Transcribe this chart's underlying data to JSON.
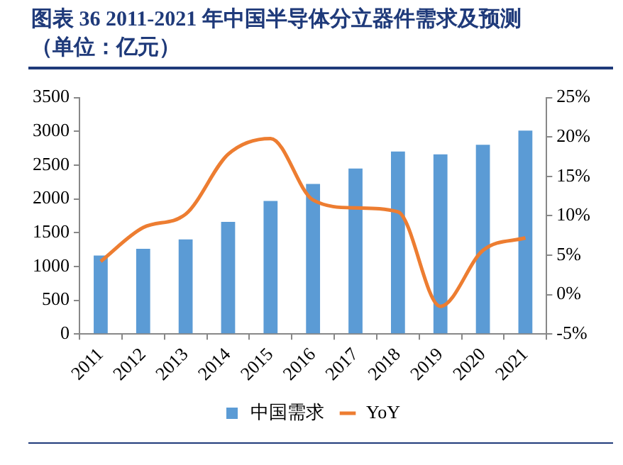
{
  "chart_data": {
    "type": "bar",
    "title": "图表 36   2011-2021 年中国半导体分立器件需求及预测",
    "subtitle": "（单位：亿元）",
    "categories": [
      "2011",
      "2012",
      "2013",
      "2014",
      "2015",
      "2016",
      "2017",
      "2018",
      "2019",
      "2020",
      "2021"
    ],
    "series": [
      {
        "name": "中国需求",
        "color": "#5b9bd5",
        "values": [
          1160,
          1260,
          1400,
          1660,
          1970,
          2220,
          2450,
          2700,
          2660,
          2800,
          3010
        ]
      },
      {
        "name": "YoY",
        "type": "line",
        "axis": "y2",
        "color": "#ed7d31",
        "values": [
          4.2,
          8.5,
          10.2,
          17.8,
          19.8,
          12,
          11,
          10.5,
          -1.5,
          5.6,
          7.2
        ]
      }
    ],
    "ylim": [
      0,
      3500
    ],
    "yticks": [
      0,
      500,
      1000,
      1500,
      2000,
      2500,
      3000,
      3500
    ],
    "y2lim": [
      -5,
      25
    ],
    "y2ticks": [
      {
        "value": -5,
        "label": "-5%"
      },
      {
        "value": 0,
        "label": "0%"
      },
      {
        "value": 5,
        "label": "5%"
      },
      {
        "value": 10,
        "label": "10%"
      },
      {
        "value": 15,
        "label": "15%"
      },
      {
        "value": 20,
        "label": "20%"
      },
      {
        "value": 25,
        "label": "25%"
      }
    ],
    "grid": false,
    "legend": "bottom",
    "marker": "none",
    "line_style": "solid"
  }
}
